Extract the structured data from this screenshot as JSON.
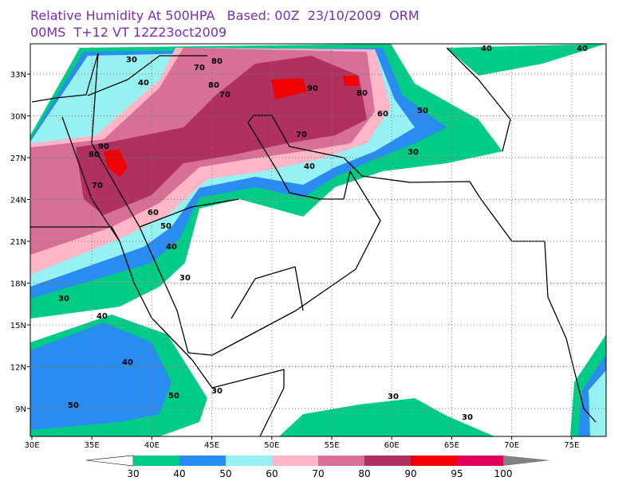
{
  "header": {
    "line1": "Relative Humidity At 500HPA   Based: 00Z  23/10/2009  ORM",
    "line2": "00MS  T+12 VT 12Z23oct2009"
  },
  "map": {
    "x_labels": [
      "30E",
      "35E",
      "40E",
      "45E",
      "50E",
      "55E",
      "60E",
      "65E",
      "70E",
      "75E"
    ],
    "y_labels": [
      "9N",
      "12N",
      "15N",
      "18N",
      "21N",
      "24N",
      "27N",
      "30N",
      "33N"
    ],
    "contour_labels": [
      "30",
      "40",
      "80",
      "70",
      "80",
      "90",
      "80",
      "70",
      "60",
      "50",
      "70",
      "40",
      "30",
      "90",
      "80",
      "70",
      "60",
      "50",
      "40",
      "30",
      "30",
      "40",
      "40",
      "50",
      "50",
      "30",
      "30",
      "30",
      "40",
      "40"
    ]
  },
  "colorbar": {
    "levels": [
      30,
      40,
      50,
      60,
      70,
      80,
      90,
      95,
      100
    ],
    "colors": [
      "#00cc88",
      "#2a8cf0",
      "#96f2f2",
      "#ffb6c6",
      "#d86f97",
      "#b0305f",
      "#f00000",
      "#e0005a"
    ]
  }
}
